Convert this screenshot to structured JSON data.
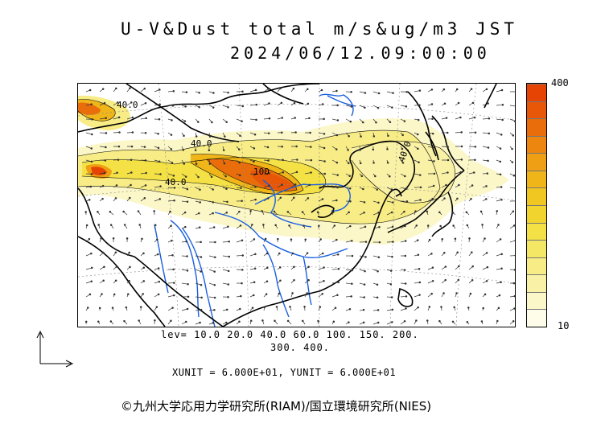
{
  "title": "U-V&Dust total m/s&ug/m3 JST",
  "datetime": "2024/06/12.09:00:00",
  "colorbar": {
    "max_label": "400",
    "min_label": "10",
    "colors": [
      "#fdfdea",
      "#fbf7c8",
      "#f9f1a6",
      "#f7ec86",
      "#f5e766",
      "#f3e145",
      "#f1d52e",
      "#f0c621",
      "#efb519",
      "#ee9f14",
      "#ec860f",
      "#ea6d0b",
      "#e85608",
      "#e64405"
    ]
  },
  "levels_line1": "lev= 10.0 20.0 40.0 60.0 100. 150. 200.",
  "levels_line2": "300. 400.",
  "units": "XUNIT = 6.000E+01, YUNIT = 6.000E+01",
  "copyright": "©九州大学応用力学研究所(RIAM)/国立環境研究所(NIES)",
  "contour_labels": [
    "40.0",
    "40.0",
    "40.0",
    "100",
    "40.0"
  ],
  "map": {
    "coast_color": "#000000",
    "river_color": "#1a5fe0",
    "arrow_color": "#333333"
  }
}
